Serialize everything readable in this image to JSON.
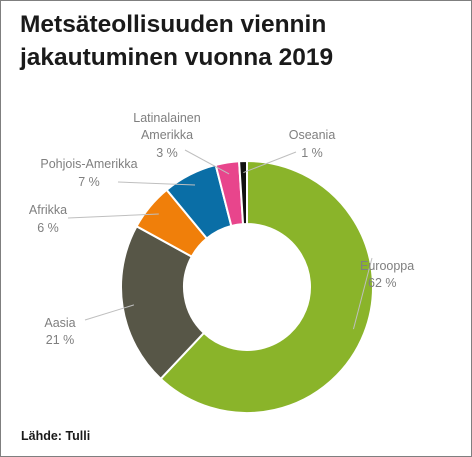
{
  "chart_data": {
    "type": "donut",
    "title_lines": [
      "Metsäteollisuuden viennin",
      "jakautuminen vuonna 2019"
    ],
    "source": "Lähde: Tulli",
    "unit": "%",
    "slices": [
      {
        "name": "Eurooppa",
        "value": 62,
        "label": "62 %",
        "color": "#8ab42a"
      },
      {
        "name": "Aasia",
        "value": 21,
        "label": "21 %",
        "color": "#575647"
      },
      {
        "name": "Afrikka",
        "value": 6,
        "label": "6 %",
        "color": "#f07f0a"
      },
      {
        "name": "Pohjois-Amerikka",
        "value": 7,
        "label": "7 %",
        "color": "#0a6ea6"
      },
      {
        "name": "Latinalainen Amerikka",
        "name_lines": [
          "Latinalainen",
          "Amerikka"
        ],
        "value": 3,
        "label": "3 %",
        "color": "#e8458c"
      },
      {
        "name": "Oseania",
        "value": 1,
        "label": "1 %",
        "color": "#111111"
      }
    ]
  }
}
